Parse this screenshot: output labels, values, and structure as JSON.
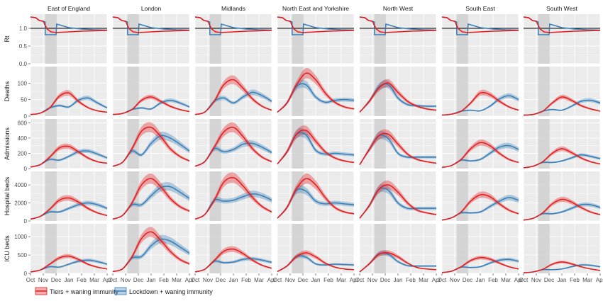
{
  "chart_data": {
    "type": "line",
    "regions": [
      "East of England",
      "London",
      "Midlands",
      "North East and Yorkshire",
      "North West",
      "South East",
      "South West"
    ],
    "metrics": [
      {
        "key": "rt",
        "label": "Rt",
        "ylim": [
          0,
          1.4
        ],
        "ticks": [
          0.0,
          0.5,
          1.0
        ],
        "tick_labels": [
          "0.0",
          "0.5",
          "1.0"
        ],
        "ref_line": 1.0
      },
      {
        "key": "deaths",
        "label": "Deaths",
        "ylim": [
          0,
          150
        ],
        "ticks": [
          0,
          50,
          100
        ],
        "tick_labels": [
          "0",
          "50",
          "100"
        ]
      },
      {
        "key": "admissions",
        "label": "Admissions",
        "ylim": [
          0,
          650
        ],
        "ticks": [
          0,
          200,
          400,
          600
        ],
        "tick_labels": [
          "0",
          "200",
          "400",
          "600"
        ]
      },
      {
        "key": "hospital",
        "label": "Hospital beds",
        "ylim": [
          0,
          5500
        ],
        "ticks": [
          0,
          2000,
          4000
        ],
        "tick_labels": [
          "0",
          "2000",
          "4000"
        ]
      },
      {
        "key": "icu",
        "label": "ICU beds",
        "ylim": [
          0,
          1350
        ],
        "ticks": [
          0,
          500,
          1000
        ],
        "tick_labels": [
          "0",
          "500",
          "1000"
        ]
      }
    ],
    "x_ticks": [
      "Oct",
      "Nov",
      "Dec",
      "Jan",
      "Feb",
      "Mar",
      "Apr"
    ],
    "x_range": [
      0,
      6
    ],
    "lockdown_shade": [
      1.15,
      2.05
    ],
    "series": [
      {
        "name": "Tiers + waning immunity",
        "color": "#E41A1C"
      },
      {
        "name": "Lockdown + waning immunity",
        "color": "#377EB8"
      }
    ],
    "grid": true,
    "legend_position": "bottom",
    "data": {
      "East of England": {
        "deaths": [
          [
            5,
            9,
            25,
            60,
            70,
            45,
            26,
            16,
            12
          ],
          [
            5,
            9,
            25,
            32,
            28,
            48,
            55,
            40,
            25
          ]
        ],
        "admissions": [
          [
            20,
            50,
            150,
            270,
            290,
            220,
            140,
            90,
            70
          ],
          [
            20,
            50,
            120,
            110,
            160,
            220,
            230,
            190,
            140
          ]
        ],
        "hospital": [
          [
            200,
            500,
            1300,
            2300,
            2550,
            2100,
            1400,
            900,
            600
          ],
          [
            200,
            500,
            1000,
            1000,
            1400,
            1800,
            2000,
            1800,
            1400
          ]
        ],
        "icu": [
          [
            40,
            90,
            250,
            420,
            470,
            380,
            250,
            170,
            120
          ],
          [
            40,
            90,
            180,
            170,
            250,
            330,
            360,
            320,
            250
          ]
        ]
      },
      "London": {
        "deaths": [
          [
            5,
            8,
            20,
            48,
            58,
            45,
            30,
            20,
            14
          ],
          [
            5,
            8,
            20,
            25,
            22,
            40,
            48,
            40,
            28
          ]
        ],
        "admissions": [
          [
            30,
            80,
            260,
            490,
            540,
            420,
            260,
            160,
            100
          ],
          [
            30,
            80,
            230,
            180,
            330,
            430,
            400,
            320,
            230
          ]
        ],
        "hospital": [
          [
            200,
            600,
            2000,
            4000,
            4700,
            3800,
            2500,
            1600,
            1100
          ],
          [
            200,
            600,
            1800,
            1800,
            2800,
            3700,
            3800,
            3200,
            2500
          ]
        ],
        "icu": [
          [
            50,
            120,
            450,
            950,
            1130,
            900,
            600,
            380,
            260
          ],
          [
            50,
            120,
            420,
            460,
            750,
            930,
            880,
            720,
            550
          ]
        ]
      },
      "Midlands": {
        "deaths": [
          [
            5,
            12,
            45,
            95,
            110,
            85,
            52,
            30,
            18
          ],
          [
            5,
            12,
            45,
            55,
            40,
            58,
            72,
            62,
            45
          ]
        ],
        "admissions": [
          [
            30,
            90,
            280,
            480,
            540,
            420,
            260,
            150,
            90
          ],
          [
            30,
            90,
            260,
            220,
            250,
            320,
            330,
            280,
            210
          ]
        ],
        "hospital": [
          [
            200,
            700,
            2300,
            4300,
            4800,
            3900,
            2600,
            1600,
            1000
          ],
          [
            200,
            700,
            2300,
            2200,
            2300,
            2700,
            3000,
            2800,
            2300
          ]
        ],
        "icu": [
          [
            40,
            110,
            350,
            600,
            660,
            540,
            360,
            220,
            140
          ],
          [
            40,
            110,
            330,
            290,
            310,
            380,
            400,
            360,
            300
          ]
        ]
      },
      "North East and Yorkshire": {
        "deaths": [
          [
            12,
            40,
            95,
            130,
            110,
            70,
            42,
            28,
            22
          ],
          [
            12,
            40,
            90,
            95,
            58,
            42,
            48,
            50,
            48
          ]
        ],
        "admissions": [
          [
            60,
            220,
            450,
            500,
            360,
            220,
            140,
            100,
            80
          ],
          [
            60,
            220,
            450,
            440,
            240,
            190,
            200,
            190,
            180
          ]
        ],
        "hospital": [
          [
            300,
            1500,
            3600,
            4700,
            4000,
            2600,
            1500,
            1000,
            800
          ],
          [
            300,
            1500,
            3400,
            3300,
            2200,
            1900,
            2000,
            1900,
            1800
          ]
        ],
        "icu": [
          [
            50,
            200,
            460,
            560,
            450,
            280,
            170,
            120,
            100
          ],
          [
            50,
            200,
            460,
            440,
            260,
            230,
            250,
            240,
            230
          ]
        ]
      },
      "North West": {
        "deaths": [
          [
            12,
            45,
            85,
            100,
            72,
            45,
            30,
            22,
            18
          ],
          [
            12,
            45,
            88,
            95,
            55,
            35,
            32,
            30,
            30
          ]
        ],
        "admissions": [
          [
            50,
            250,
            430,
            450,
            320,
            190,
            120,
            90,
            70
          ],
          [
            50,
            250,
            430,
            390,
            200,
            150,
            150,
            150,
            150
          ]
        ],
        "hospital": [
          [
            300,
            1700,
            3500,
            4000,
            3200,
            2000,
            1200,
            900,
            700
          ],
          [
            300,
            1700,
            3500,
            3400,
            2000,
            1400,
            1400,
            1400,
            1400
          ]
        ],
        "icu": [
          [
            40,
            260,
            520,
            560,
            450,
            280,
            160,
            120,
            100
          ],
          [
            40,
            260,
            530,
            520,
            320,
            210,
            200,
            200,
            200
          ]
        ]
      },
      "South East": {
        "deaths": [
          [
            3,
            6,
            15,
            40,
            70,
            65,
            45,
            28,
            18
          ],
          [
            3,
            6,
            15,
            18,
            16,
            30,
            52,
            62,
            50
          ]
        ],
        "admissions": [
          [
            15,
            40,
            120,
            260,
            340,
            300,
            200,
            120,
            80
          ],
          [
            15,
            40,
            110,
            100,
            120,
            200,
            280,
            300,
            250
          ]
        ],
        "hospital": [
          [
            100,
            350,
            1000,
            2200,
            2900,
            2700,
            1900,
            1200,
            800
          ],
          [
            100,
            350,
            900,
            900,
            1000,
            1600,
            2200,
            2600,
            2300
          ]
        ],
        "icu": [
          [
            20,
            60,
            180,
            350,
            430,
            390,
            280,
            180,
            120
          ],
          [
            20,
            60,
            170,
            160,
            180,
            280,
            360,
            380,
            330
          ]
        ]
      },
      "South West": {
        "deaths": [
          [
            3,
            5,
            15,
            40,
            58,
            48,
            32,
            22,
            15
          ],
          [
            3,
            5,
            15,
            20,
            18,
            30,
            45,
            48,
            40
          ]
        ],
        "admissions": [
          [
            10,
            30,
            90,
            200,
            260,
            210,
            140,
            90,
            60
          ],
          [
            10,
            30,
            80,
            80,
            100,
            140,
            180,
            160,
            130
          ]
        ],
        "hospital": [
          [
            100,
            300,
            900,
            1900,
            2400,
            2100,
            1500,
            1000,
            700
          ],
          [
            100,
            300,
            800,
            800,
            1000,
            1400,
            1800,
            1800,
            1500
          ]
        ],
        "icu": [
          [
            15,
            40,
            110,
            250,
            310,
            260,
            180,
            120,
            80
          ],
          [
            15,
            40,
            100,
            100,
            120,
            180,
            230,
            220,
            180
          ]
        ]
      }
    }
  }
}
